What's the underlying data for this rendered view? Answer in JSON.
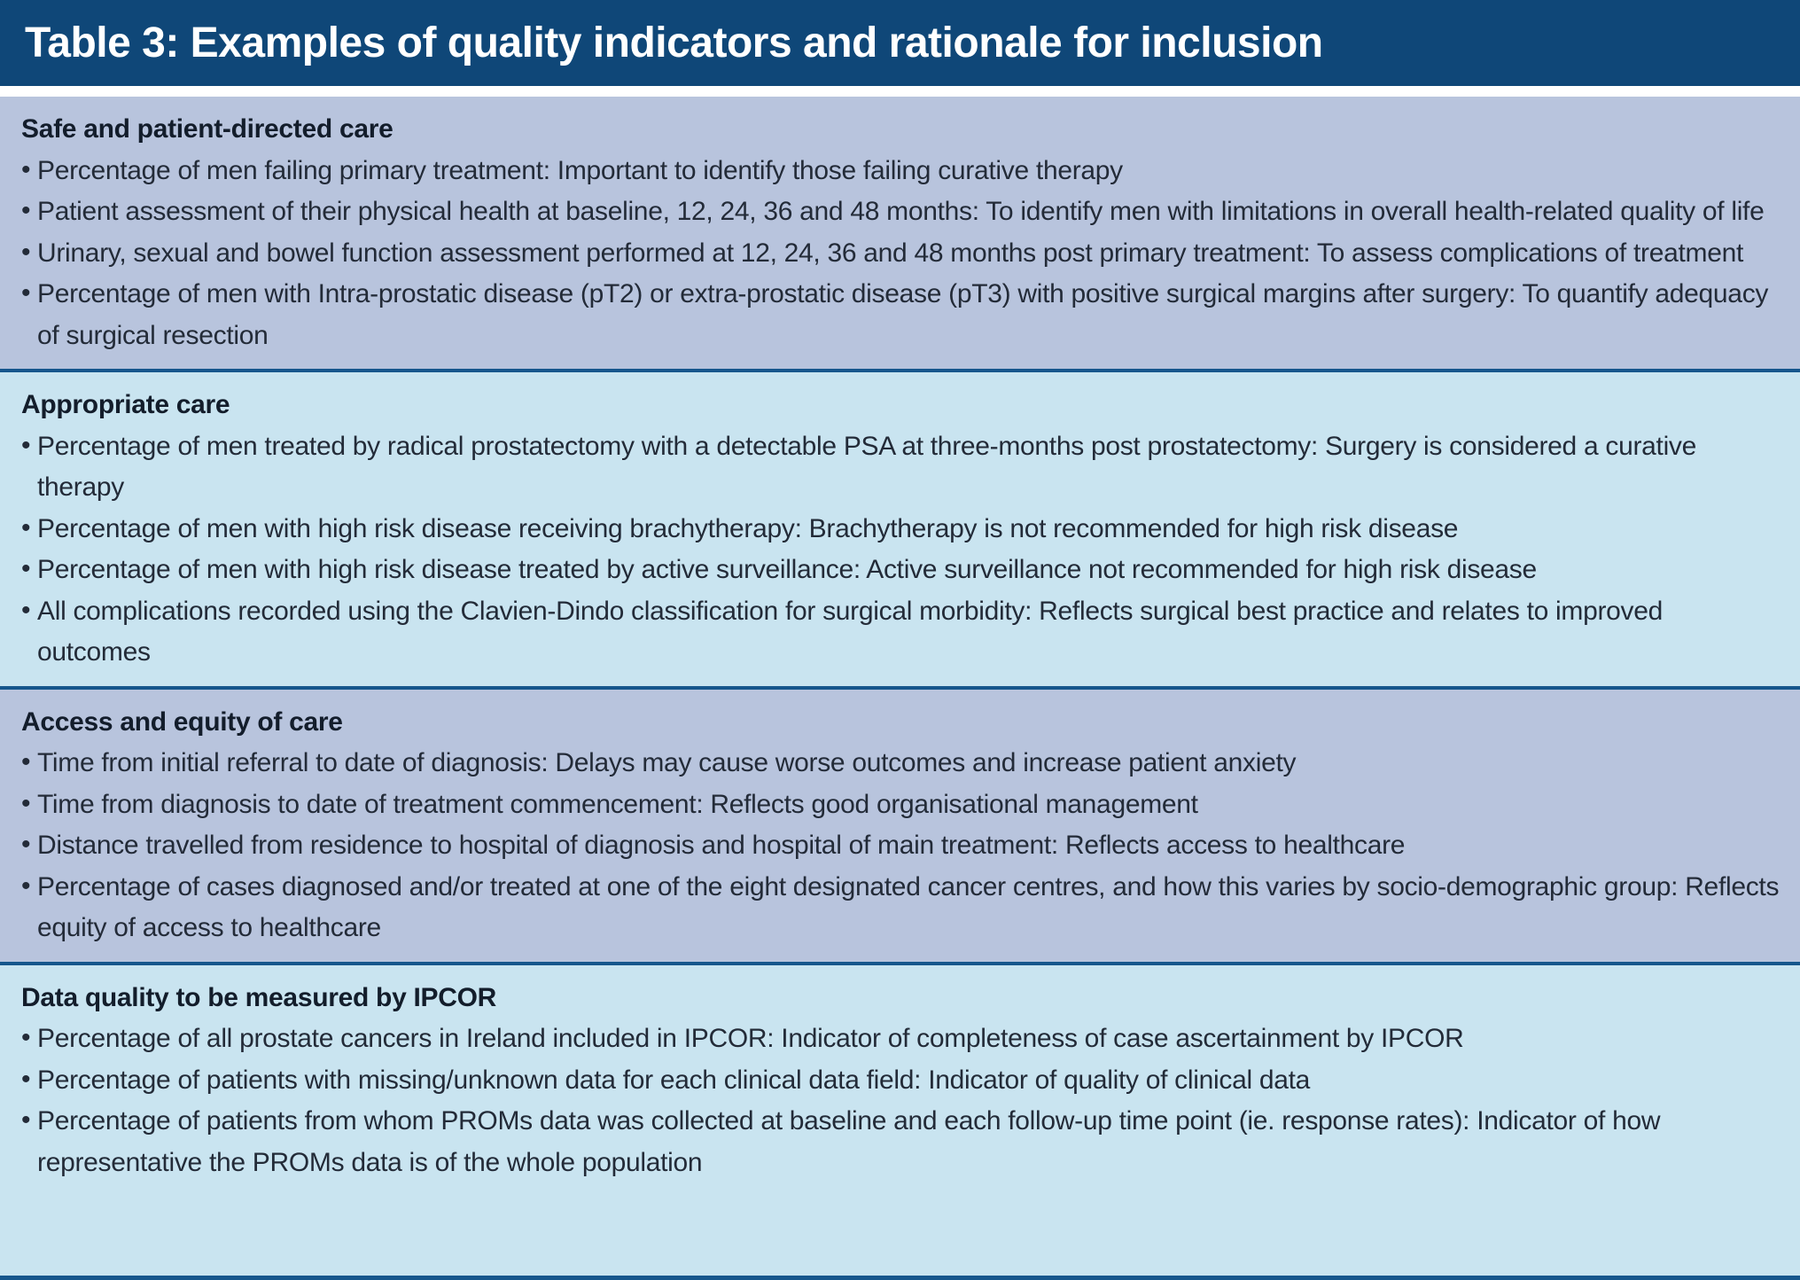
{
  "title": "Table 3: Examples of quality indicators and rationale for inclusion",
  "colors": {
    "header_bg": "#0f4778",
    "title_text": "#ffffff",
    "divider": "#16568c",
    "band_blue_gray": "#b8c4dd",
    "band_light_blue": "#c9e4f0",
    "text": "#232b38"
  },
  "sections": [
    {
      "id": "safe-care",
      "heading": "Safe and patient-directed care",
      "background": "#b8c4dd",
      "bullets": [
        "Percentage of men failing primary treatment: Important to identify those failing curative therapy",
        "Patient assessment of their physical health at baseline, 12, 24, 36 and 48 months: To identify men with limitations in overall health-related quality of life",
        "Urinary, sexual and bowel function assessment performed at 12, 24, 36 and 48 months post primary treatment: To assess complications of treatment",
        "Percentage of men with Intra-prostatic disease (pT2) or extra-prostatic disease (pT3) with positive surgical margins after surgery: To quantify adequacy of surgical resection"
      ]
    },
    {
      "id": "appropriate-care",
      "heading": "Appropriate care",
      "background": "#c9e4f0",
      "bullets": [
        "Percentage of men treated by radical prostatectomy with a detectable PSA at three-months post prostatectomy: Surgery is considered a curative therapy",
        "Percentage of men with high risk disease receiving brachytherapy: Brachytherapy is not recommended for high risk disease",
        "Percentage of men with high risk disease treated by active surveillance: Active surveillance not recommended for high risk disease",
        "All complications recorded using the Clavien-Dindo classification for surgical morbidity: Reflects surgical best practice and relates to improved outcomes"
      ]
    },
    {
      "id": "access-equity",
      "heading": "Access and equity of care",
      "background": "#b8c4dd",
      "bullets": [
        "Time from initial referral to date of diagnosis: Delays may cause worse outcomes and increase patient anxiety",
        "Time from diagnosis to date of treatment commencement: Reflects good organisational management",
        "Distance travelled from residence to hospital of diagnosis and hospital of main treatment: Reflects access to healthcare",
        "Percentage of cases diagnosed and/or treated at one of the eight designated cancer centres, and how this varies by socio-demographic group: Reflects equity of access to healthcare"
      ]
    },
    {
      "id": "data-quality",
      "heading": "Data quality to be measured by IPCOR",
      "background": "#c9e4f0",
      "bullets": [
        "Percentage of all prostate cancers in Ireland included in IPCOR: Indicator of completeness of case ascertainment by IPCOR",
        "Percentage of patients with missing/unknown data for each clinical data field: Indicator of quality of clinical data",
        "Percentage of patients from whom PROMs data was collected at baseline and each follow-up time point (ie. response rates): Indicator of how representative the PROMs data is of the whole population"
      ]
    }
  ]
}
